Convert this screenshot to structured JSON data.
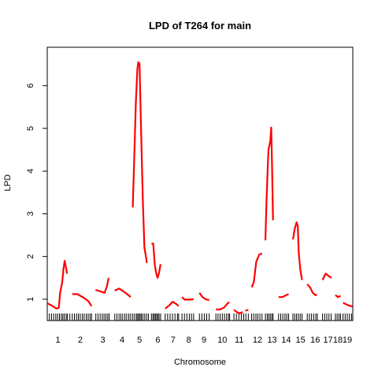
{
  "chart_data": {
    "type": "line",
    "title": "LPD of T264 for main",
    "xlabel": "Chromosome",
    "ylabel": "LPD",
    "xlim": [
      0,
      100
    ],
    "ylim": [
      0.5,
      6.9
    ],
    "yticks": [
      1,
      2,
      3,
      4,
      5,
      6
    ],
    "line_color": "#ff0000",
    "x_tick_labels": [
      {
        "label": "1",
        "x": 3.5
      },
      {
        "label": "2",
        "x": 10.8
      },
      {
        "label": "3",
        "x": 18.2
      },
      {
        "label": "4",
        "x": 24.5
      },
      {
        "label": "5",
        "x": 30.2
      },
      {
        "label": "6",
        "x": 36.2
      },
      {
        "label": "7",
        "x": 41.2
      },
      {
        "label": "8",
        "x": 46.3
      },
      {
        "label": "9",
        "x": 51.3
      },
      {
        "label": "10",
        "x": 57.3
      },
      {
        "label": "11",
        "x": 62.8
      },
      {
        "label": "12",
        "x": 68.8
      },
      {
        "label": "13",
        "x": 73.6
      },
      {
        "label": "14",
        "x": 78.2
      },
      {
        "label": "15",
        "x": 82.9
      },
      {
        "label": "16",
        "x": 87.7
      },
      {
        "label": "17",
        "x": 91.9
      },
      {
        "label": "18",
        "x": 95.1
      },
      {
        "label": "19",
        "x": 98.2
      }
    ],
    "series": [
      {
        "chromosome": "1",
        "points": [
          [
            0.1,
            0.9
          ],
          [
            1.5,
            0.85
          ],
          [
            3.0,
            0.78
          ],
          [
            3.8,
            0.8
          ],
          [
            4.2,
            1.15
          ],
          [
            4.9,
            1.4
          ],
          [
            5.3,
            1.7
          ],
          [
            5.7,
            1.9
          ],
          [
            6.1,
            1.75
          ],
          [
            6.5,
            1.6
          ]
        ]
      },
      {
        "chromosome": "2",
        "points": [
          [
            8.2,
            1.12
          ],
          [
            9.8,
            1.12
          ],
          [
            11.6,
            1.05
          ],
          [
            13.4,
            0.96
          ],
          [
            14.5,
            0.84
          ]
        ]
      },
      {
        "chromosome": "3",
        "points": [
          [
            15.8,
            1.22
          ],
          [
            17.5,
            1.18
          ],
          [
            18.8,
            1.15
          ],
          [
            19.5,
            1.3
          ],
          [
            20.1,
            1.5
          ]
        ]
      },
      {
        "chromosome": "4",
        "points": [
          [
            22.1,
            1.2
          ],
          [
            23.5,
            1.25
          ],
          [
            25.0,
            1.18
          ],
          [
            26.5,
            1.1
          ],
          [
            27.3,
            1.05
          ]
        ]
      },
      {
        "chromosome": "5",
        "points": [
          [
            28.0,
            3.15
          ],
          [
            28.5,
            4.4
          ],
          [
            29.0,
            5.6
          ],
          [
            29.5,
            6.4
          ],
          [
            29.8,
            6.55
          ],
          [
            30.2,
            6.52
          ],
          [
            30.7,
            5.0
          ],
          [
            31.3,
            3.3
          ],
          [
            31.8,
            2.2
          ],
          [
            32.2,
            2.05
          ],
          [
            32.6,
            1.85
          ]
        ]
      },
      {
        "chromosome": "6",
        "points": [
          [
            34.1,
            2.3
          ],
          [
            34.7,
            2.3
          ],
          [
            35.2,
            1.8
          ],
          [
            35.7,
            1.6
          ],
          [
            36.1,
            1.5
          ],
          [
            36.6,
            1.62
          ],
          [
            37.1,
            1.82
          ]
        ]
      },
      {
        "chromosome": "7",
        "points": [
          [
            38.6,
            0.78
          ],
          [
            40.0,
            0.86
          ],
          [
            41.0,
            0.94
          ],
          [
            42.2,
            0.89
          ],
          [
            43.0,
            0.84
          ]
        ]
      },
      {
        "chromosome": "8",
        "points": [
          [
            44.1,
            1.05
          ],
          [
            45.0,
            0.99
          ],
          [
            46.5,
            0.99
          ],
          [
            47.9,
            1.0
          ]
        ]
      },
      {
        "chromosome": "9",
        "points": [
          [
            49.8,
            1.15
          ],
          [
            50.8,
            1.05
          ],
          [
            51.8,
            1.0
          ],
          [
            53.0,
            0.98
          ]
        ]
      },
      {
        "chromosome": "10",
        "points": [
          [
            55.2,
            0.76
          ],
          [
            56.5,
            0.76
          ],
          [
            57.8,
            0.8
          ],
          [
            59.0,
            0.9
          ],
          [
            59.6,
            0.93
          ]
        ]
      },
      {
        "chromosome": "11",
        "points": [
          [
            61.1,
            0.75
          ],
          [
            62.0,
            0.7
          ],
          [
            63.0,
            0.67
          ],
          [
            64.0,
            0.7
          ]
        ]
      },
      {
        "chromosome": "11b",
        "points": [
          [
            64.8,
            0.73
          ],
          [
            65.8,
            0.75
          ]
        ]
      },
      {
        "chromosome": "12",
        "points": [
          [
            66.9,
            1.28
          ],
          [
            67.6,
            1.4
          ],
          [
            68.4,
            1.88
          ],
          [
            69.4,
            2.05
          ],
          [
            70.3,
            2.07
          ]
        ]
      },
      {
        "chromosome": "13",
        "points": [
          [
            71.4,
            2.38
          ],
          [
            71.8,
            3.4
          ],
          [
            72.4,
            4.5
          ],
          [
            73.0,
            4.7
          ],
          [
            73.3,
            5.02
          ],
          [
            73.6,
            4.0
          ],
          [
            73.9,
            2.85
          ]
        ]
      },
      {
        "chromosome": "14",
        "points": [
          [
            75.7,
            1.05
          ],
          [
            77.0,
            1.05
          ],
          [
            78.3,
            1.1
          ],
          [
            79.0,
            1.12
          ]
        ]
      },
      {
        "chromosome": "15",
        "points": [
          [
            80.4,
            2.4
          ],
          [
            81.0,
            2.65
          ],
          [
            81.6,
            2.8
          ],
          [
            82.0,
            2.7
          ],
          [
            82.3,
            2.1
          ],
          [
            82.8,
            1.7
          ],
          [
            83.4,
            1.45
          ]
        ]
      },
      {
        "chromosome": "16",
        "points": [
          [
            85.1,
            1.35
          ],
          [
            86.0,
            1.28
          ],
          [
            86.9,
            1.15
          ],
          [
            87.7,
            1.1
          ],
          [
            88.3,
            1.1
          ]
        ]
      },
      {
        "chromosome": "17",
        "points": [
          [
            90.1,
            1.45
          ],
          [
            91.1,
            1.6
          ],
          [
            92.0,
            1.55
          ],
          [
            93.0,
            1.5
          ]
        ]
      },
      {
        "chromosome": "18",
        "points": [
          [
            94.3,
            1.1
          ],
          [
            95.1,
            1.05
          ],
          [
            96.0,
            1.08
          ]
        ]
      },
      {
        "chromosome": "19",
        "points": [
          [
            96.8,
            0.92
          ],
          [
            97.8,
            0.88
          ],
          [
            98.8,
            0.85
          ],
          [
            99.9,
            0.83
          ]
        ]
      }
    ],
    "marker_positions": [
      0.7,
      1.4,
      2.1,
      2.8,
      3.4,
      4.0,
      4.6,
      5.1,
      5.6,
      6.2,
      6.6,
      7.4,
      8.2,
      8.9,
      9.6,
      10.2,
      10.8,
      11.5,
      12.1,
      12.8,
      13.4,
      14.0,
      14.5,
      15.9,
      16.6,
      17.3,
      18.0,
      18.6,
      19.2,
      19.8,
      20.3,
      22.1,
      22.8,
      23.5,
      24.1,
      24.7,
      25.4,
      26.0,
      26.7,
      27.3,
      28.0,
      28.6,
      29.2,
      29.6,
      30.0,
      30.4,
      30.8,
      31.3,
      31.9,
      32.5,
      33.1,
      34.1,
      34.6,
      35.0,
      35.4,
      35.8,
      36.2,
      36.6,
      37.1,
      38.6,
      39.4,
      40.2,
      41.0,
      41.8,
      42.6,
      43.0,
      44.1,
      44.9,
      45.7,
      46.5,
      47.2,
      47.9,
      49.8,
      50.6,
      51.4,
      52.2,
      53.0,
      55.2,
      55.9,
      56.6,
      57.3,
      58.0,
      58.7,
      59.3,
      59.7,
      61.1,
      61.9,
      62.7,
      63.5,
      64.3,
      65.0,
      65.8,
      66.9,
      67.6,
      68.3,
      68.9,
      69.6,
      70.3,
      71.4,
      72.0,
      72.5,
      73.0,
      73.5,
      73.9,
      75.7,
      76.4,
      77.1,
      77.8,
      78.4,
      79.0,
      80.4,
      81.0,
      81.6,
      82.2,
      82.8,
      83.4,
      85.1,
      85.8,
      86.5,
      87.2,
      87.9,
      88.4,
      90.1,
      90.8,
      91.5,
      92.2,
      92.9,
      94.3,
      94.9,
      95.5,
      96.0,
      96.8,
      97.5,
      98.2,
      98.9,
      99.6
    ]
  }
}
